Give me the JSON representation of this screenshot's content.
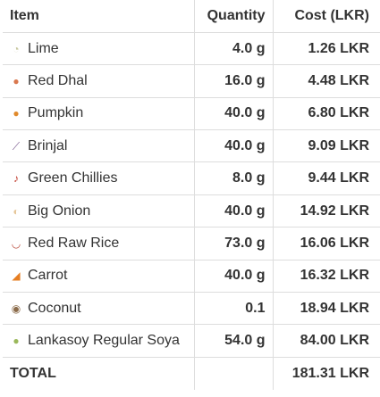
{
  "header": {
    "item": "Item",
    "quantity": "Quantity",
    "cost": "Cost (LKR)"
  },
  "rows": [
    {
      "icon": "lime-icon",
      "glyph": "◔",
      "color": "#c8c8a0",
      "item": "Lime",
      "quantity": "4.0 g",
      "cost": "1.26 LKR"
    },
    {
      "icon": "red-dhal-icon",
      "glyph": "●",
      "color": "#d9784e",
      "item": "Red Dhal",
      "quantity": "16.0 g",
      "cost": "4.48 LKR"
    },
    {
      "icon": "pumpkin-icon",
      "glyph": "●",
      "color": "#e08a2c",
      "item": "Pumpkin",
      "quantity": "40.0 g",
      "cost": "6.80 LKR"
    },
    {
      "icon": "brinjal-icon",
      "glyph": "⟋",
      "color": "#7a5a8e",
      "item": "Brinjal",
      "quantity": "40.0 g",
      "cost": "9.09 LKR"
    },
    {
      "icon": "green-chillies-icon",
      "glyph": "♪",
      "color": "#c0392b",
      "item": "Green Chillies",
      "quantity": "8.0 g",
      "cost": "9.44 LKR"
    },
    {
      "icon": "big-onion-icon",
      "glyph": "◐",
      "color": "#e6c79a",
      "item": "Big Onion",
      "quantity": "40.0 g",
      "cost": "14.92 LKR"
    },
    {
      "icon": "red-raw-rice-icon",
      "glyph": "◡",
      "color": "#b84a3a",
      "item": "Red Raw Rice",
      "quantity": "73.0 g",
      "cost": "16.06 LKR"
    },
    {
      "icon": "carrot-icon",
      "glyph": "◢",
      "color": "#e67e22",
      "item": "Carrot",
      "quantity": "40.0 g",
      "cost": "16.32 LKR"
    },
    {
      "icon": "coconut-icon",
      "glyph": "◉",
      "color": "#8b6b4a",
      "item": "Coconut",
      "quantity": "0.1",
      "cost": "18.94 LKR"
    },
    {
      "icon": "soya-icon",
      "glyph": "●",
      "color": "#9ab85a",
      "item": "Lankasoy Regular Soya",
      "quantity": "54.0 g",
      "cost": "84.00 LKR"
    }
  ],
  "total": {
    "label": "TOTAL",
    "quantity": "",
    "cost": "181.31 LKR"
  }
}
